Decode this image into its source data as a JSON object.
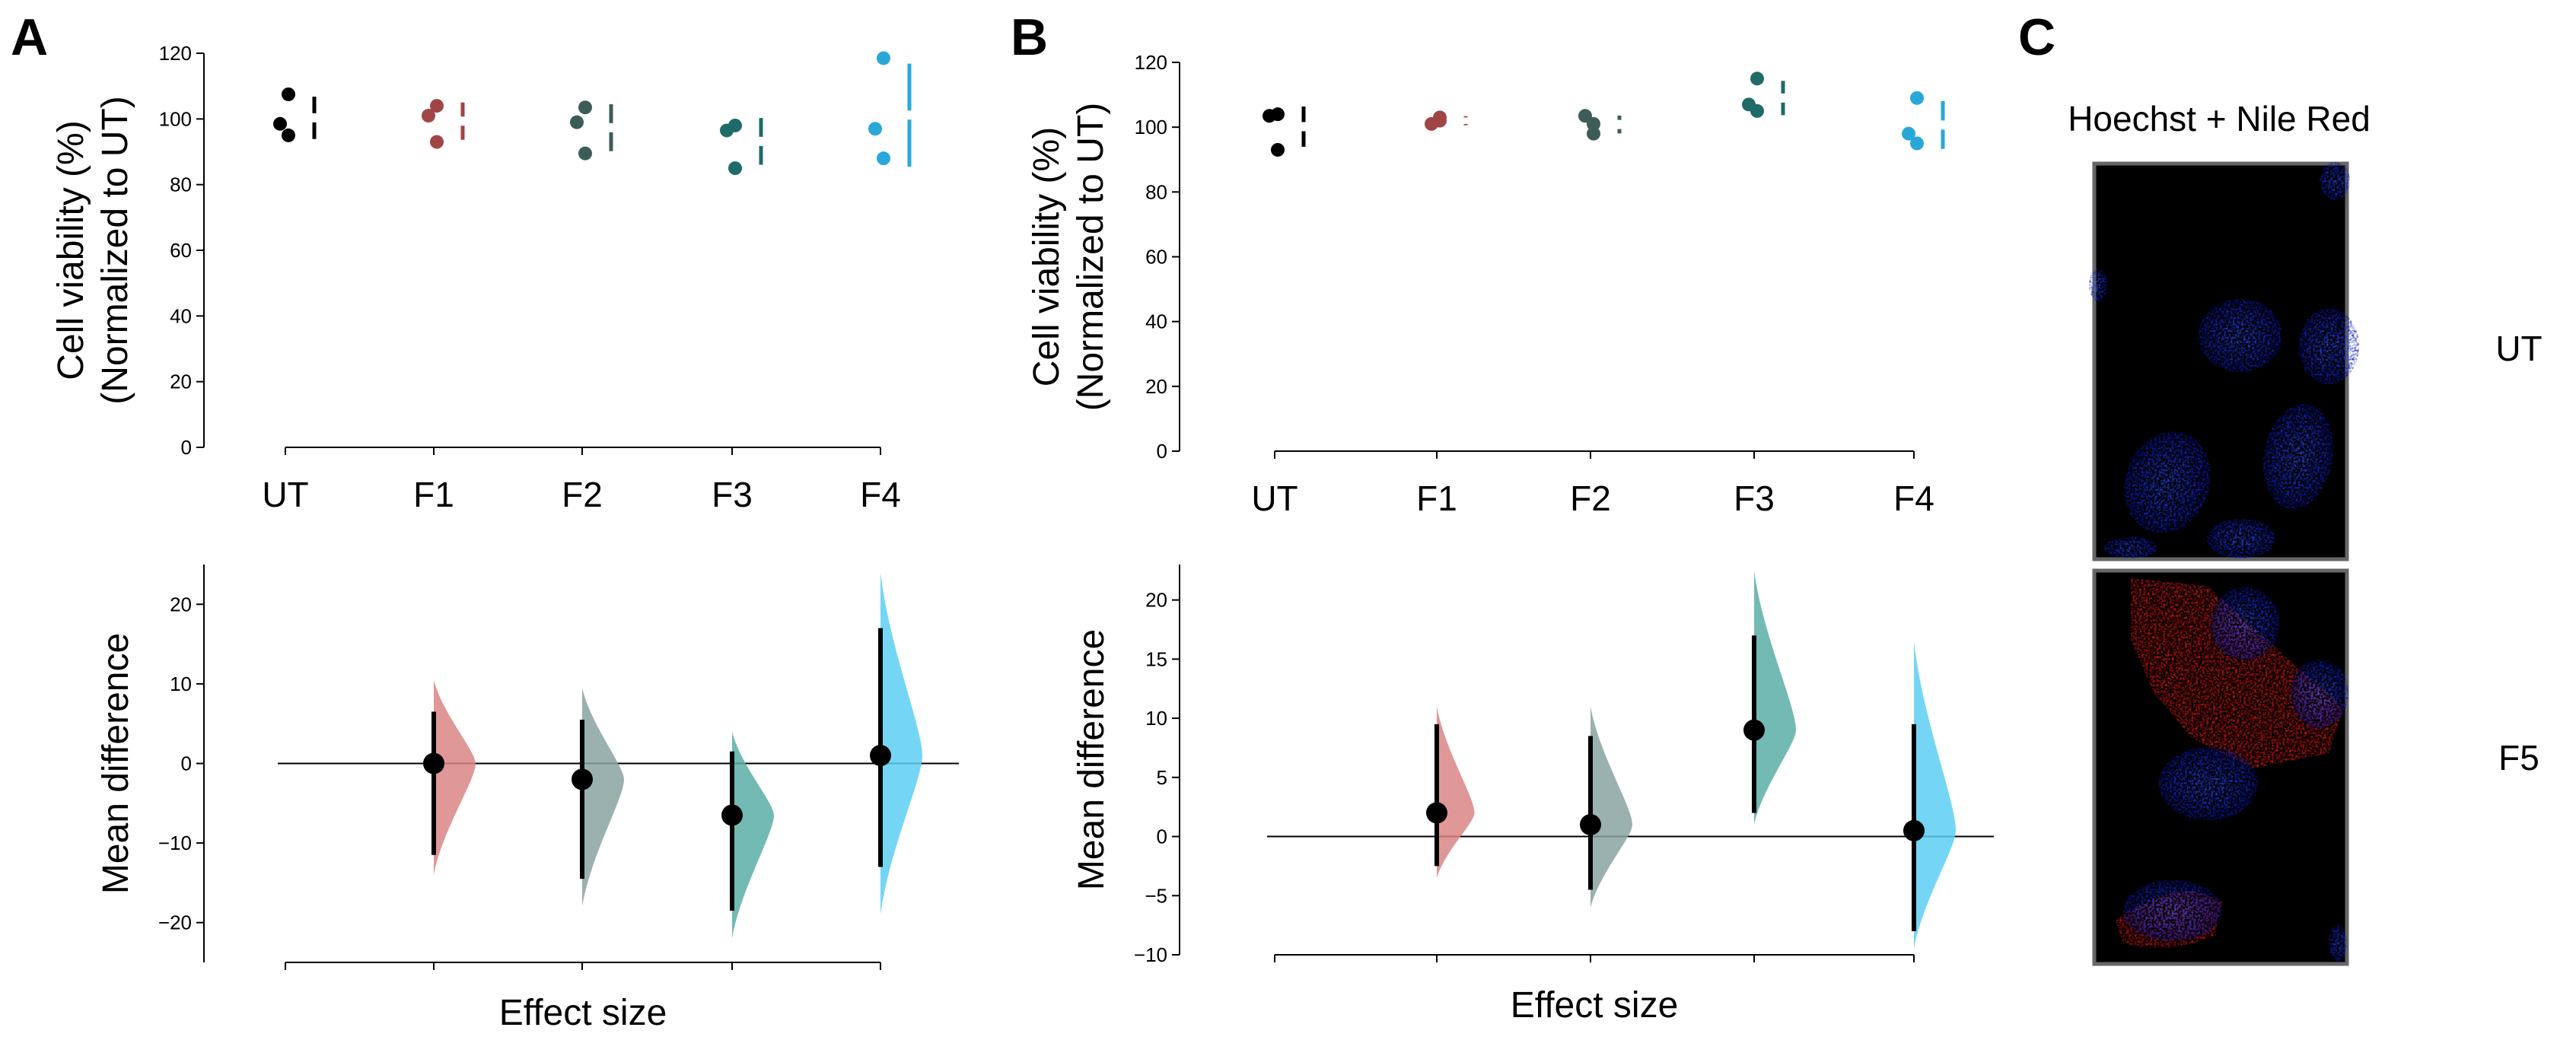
{
  "panels": {
    "A": {
      "letter": "A"
    },
    "B": {
      "letter": "B"
    },
    "C": {
      "letter": "C",
      "title": "Hoechst + Nile Red",
      "row_labels": [
        "UT",
        "F5"
      ]
    }
  },
  "chart_data": [
    {
      "id": "A-top",
      "panel": "A",
      "type": "scatter",
      "ylabel_lines": [
        "Cell viability (%)",
        "(Normalized to UT)"
      ],
      "ylim": [
        0,
        120
      ],
      "yticks": [
        0,
        20,
        40,
        60,
        80,
        100,
        120
      ],
      "categories": [
        "UT",
        "F1",
        "F2",
        "F3",
        "F4"
      ],
      "colors": [
        "#000000",
        "#a04545",
        "#3d5c58",
        "#1e6b68",
        "#29a8d8"
      ],
      "series": [
        {
          "category": "UT",
          "values": [
            107.5,
            98.5,
            95
          ]
        },
        {
          "category": "F1",
          "values": [
            104,
            101,
            93
          ]
        },
        {
          "category": "F2",
          "values": [
            103.5,
            99,
            89.5
          ]
        },
        {
          "category": "F3",
          "values": [
            98,
            96.5,
            85
          ]
        },
        {
          "category": "F4",
          "values": [
            118.5,
            97,
            88
          ]
        }
      ]
    },
    {
      "id": "A-bottom",
      "panel": "A",
      "type": "scatter",
      "ylabel": "Mean difference",
      "xlabel": "Effect size",
      "ylim": [
        -25,
        25
      ],
      "yticks": [
        -20,
        -10,
        0,
        10,
        20
      ],
      "categories": [
        "UT",
        "F1",
        "F2",
        "F3",
        "F4"
      ],
      "colors": [
        "#000000",
        "#d98585",
        "#8aa39f",
        "#5aaea7",
        "#5ccff2"
      ],
      "effects": [
        {
          "category": "F1",
          "mean": 0,
          "ci": [
            -11.5,
            6.5
          ],
          "range": [
            -14,
            10.5
          ]
        },
        {
          "category": "F2",
          "mean": -2,
          "ci": [
            -14.5,
            5.5
          ],
          "range": [
            -18,
            9.5
          ]
        },
        {
          "category": "F3",
          "mean": -6.5,
          "ci": [
            -18.5,
            1.5
          ],
          "range": [
            -22,
            4
          ]
        },
        {
          "category": "F4",
          "mean": 1,
          "ci": [
            -13,
            17
          ],
          "range": [
            -19,
            24
          ]
        }
      ]
    },
    {
      "id": "B-top",
      "panel": "B",
      "type": "scatter",
      "ylabel_lines": [
        "Cell viability (%)",
        "(Normalized to UT)"
      ],
      "ylim": [
        0,
        120
      ],
      "yticks": [
        0,
        20,
        40,
        60,
        80,
        100,
        120
      ],
      "categories": [
        "UT",
        "F1",
        "F2",
        "F3",
        "F4"
      ],
      "colors": [
        "#000000",
        "#a04545",
        "#3d5c58",
        "#1e6b68",
        "#29a8d8"
      ],
      "series": [
        {
          "category": "UT",
          "values": [
            104,
            103.5,
            93
          ]
        },
        {
          "category": "F1",
          "values": [
            102,
            101,
            103
          ]
        },
        {
          "category": "F2",
          "values": [
            101,
            103.5,
            98
          ]
        },
        {
          "category": "F3",
          "values": [
            115,
            107,
            105
          ]
        },
        {
          "category": "F4",
          "values": [
            109,
            98,
            95
          ]
        }
      ]
    },
    {
      "id": "B-bottom",
      "panel": "B",
      "type": "scatter",
      "ylabel": "Mean difference",
      "xlabel": "Effect size",
      "ylim": [
        -10,
        23
      ],
      "yticks": [
        -10,
        -5,
        0,
        5,
        10,
        15,
        20
      ],
      "categories": [
        "UT",
        "F1",
        "F2",
        "F3",
        "F4"
      ],
      "colors": [
        "#000000",
        "#d98585",
        "#8aa39f",
        "#5aaea7",
        "#5ccff2"
      ],
      "effects": [
        {
          "category": "F1",
          "mean": 2,
          "ci": [
            -2.5,
            9.5
          ],
          "range": [
            -3.5,
            11
          ]
        },
        {
          "category": "F2",
          "mean": 1,
          "ci": [
            -4.5,
            8.5
          ],
          "range": [
            -6,
            11
          ]
        },
        {
          "category": "F3",
          "mean": 9,
          "ci": [
            2,
            17
          ],
          "range": [
            1,
            22.5
          ]
        },
        {
          "category": "F4",
          "mean": 0.5,
          "ci": [
            -8,
            9.5
          ],
          "range": [
            -9.5,
            16.5
          ]
        }
      ]
    }
  ]
}
